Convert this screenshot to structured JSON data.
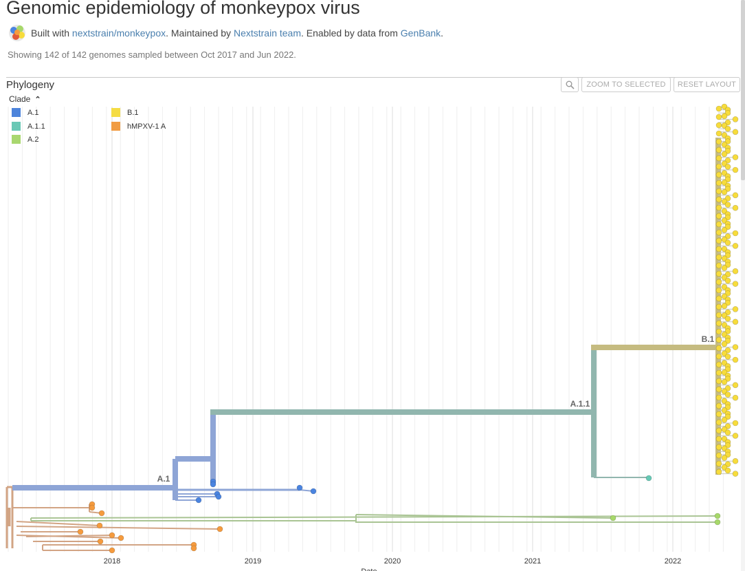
{
  "header": {
    "title": "Genomic epidemiology of monkeypox virus",
    "built_with_prefix": "Built with ",
    "built_with_link": "nextstrain/monkeypox",
    "maintained_prefix": ". Maintained by ",
    "maintained_link": "Nextstrain team",
    "data_prefix": ". Enabled by data from ",
    "data_link": "GenBank",
    "data_suffix": ".",
    "summary": "Showing 142 of 142 genomes sampled between Oct 2017 and Jun 2022."
  },
  "panel": {
    "title": "Phylogeny",
    "zoom_button": "ZOOM TO SELECTED",
    "reset_button": "RESET LAYOUT",
    "zoom_icon": "magnifier-icon"
  },
  "legend": {
    "title": "Clade",
    "toggle_icon": "caret-up-icon",
    "items": [
      {
        "label": "A.1",
        "color": "#4A84E0"
      },
      {
        "label": "A.1.1",
        "color": "#66C9B5"
      },
      {
        "label": "A.2",
        "color": "#A7D86A"
      },
      {
        "label": "B.1",
        "color": "#F7DC3C"
      },
      {
        "label": "hMPXV-1 A",
        "color": "#F59B3E"
      }
    ]
  },
  "tree": {
    "x_label": "Date",
    "years": [
      "2018",
      "2019",
      "2020",
      "2021",
      "2022"
    ],
    "branch_labels": [
      "A.1",
      "A.1.1",
      "B.1"
    ],
    "colors": {
      "A.1": "#8EA5D6",
      "A.1.1": "#91B6AE",
      "A.2": "#A9C493",
      "B.1": "#C5BB80",
      "hMPXV-1 A": "#D2A484",
      "tip_A.1": "#4A84E0",
      "tip_A.1.1": "#66C9B5",
      "tip_A.2": "#A7D86A",
      "tip_B.1": "#F7DC3C",
      "tip_hMPXV": "#F59B3E"
    }
  }
}
